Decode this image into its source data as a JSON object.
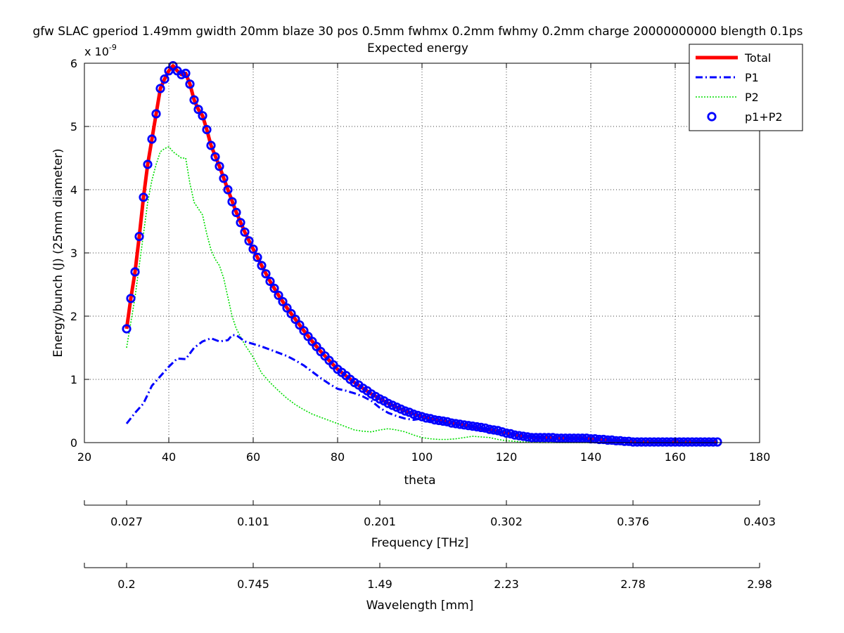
{
  "chart_data": {
    "type": "line",
    "title_line1": "gfw SLAC gperiod 1.49mm gwidth 20mm blaze 30 pos 0.5mm fwhmx 0.2mm fwhmy 0.2mm charge 20000000000 blength 0.1ps",
    "title_line2": "Expected energy",
    "xlabel": "theta",
    "ylabel": "Energy/bunch (J) (25mm diameter)",
    "y_exponent_base": "x 10",
    "y_exponent_power": "-9",
    "xlim": [
      20,
      180
    ],
    "ylim": [
      0,
      6
    ],
    "x_ticks": [
      20,
      40,
      60,
      80,
      100,
      120,
      140,
      160,
      180
    ],
    "y_ticks": [
      0,
      1,
      2,
      3,
      4,
      5,
      6
    ],
    "grid": true,
    "legend_position": "top-right",
    "series": [
      {
        "name": "Total",
        "style": "solid-thick",
        "color": "#ff0000",
        "x": [
          30,
          31,
          32,
          33,
          34,
          35,
          36,
          37,
          38,
          39,
          40,
          41,
          42,
          43,
          44,
          45,
          46,
          47,
          48,
          49,
          50,
          52,
          54,
          56,
          58,
          60,
          62,
          64,
          66,
          68,
          70,
          72,
          74,
          76,
          78,
          80,
          84,
          88,
          92,
          96,
          100,
          104,
          108,
          112,
          116,
          120,
          124,
          128,
          132,
          136,
          140,
          144,
          148,
          152,
          156,
          160,
          164,
          168,
          170
        ],
        "y": [
          1.8,
          2.28,
          2.7,
          3.26,
          3.88,
          4.4,
          4.8,
          5.2,
          5.6,
          5.75,
          5.88,
          5.96,
          5.88,
          5.82,
          5.84,
          5.67,
          5.42,
          5.27,
          5.17,
          4.95,
          4.7,
          4.37,
          4.0,
          3.64,
          3.33,
          3.06,
          2.8,
          2.55,
          2.33,
          2.13,
          1.95,
          1.77,
          1.6,
          1.44,
          1.3,
          1.16,
          0.95,
          0.77,
          0.62,
          0.5,
          0.41,
          0.35,
          0.3,
          0.25,
          0.2,
          0.15,
          0.1,
          0.08,
          0.07,
          0.07,
          0.06,
          0.04,
          0.02,
          0.01,
          0.01,
          0.01,
          0.01,
          0.01,
          0.01
        ]
      },
      {
        "name": "P1",
        "style": "dashdot",
        "color": "#0000ff",
        "x": [
          30,
          32,
          34,
          36,
          38,
          40,
          42,
          44,
          46,
          48,
          50,
          52,
          54,
          55,
          56,
          58,
          60,
          62,
          64,
          66,
          68,
          70,
          72,
          74,
          76,
          78,
          80,
          82,
          84,
          86,
          88,
          90,
          92,
          94,
          96,
          98,
          100,
          102,
          104,
          108,
          112,
          116,
          120,
          124,
          128,
          132,
          136,
          140,
          144,
          148,
          152,
          156,
          160,
          164,
          168,
          170
        ],
        "y": [
          0.3,
          0.47,
          0.62,
          0.9,
          1.05,
          1.2,
          1.33,
          1.32,
          1.5,
          1.6,
          1.65,
          1.6,
          1.62,
          1.7,
          1.7,
          1.6,
          1.56,
          1.52,
          1.47,
          1.42,
          1.37,
          1.3,
          1.22,
          1.12,
          1.02,
          0.93,
          0.85,
          0.82,
          0.78,
          0.73,
          0.66,
          0.55,
          0.47,
          0.42,
          0.38,
          0.36,
          0.38,
          0.35,
          0.33,
          0.29,
          0.26,
          0.21,
          0.15,
          0.1,
          0.08,
          0.07,
          0.07,
          0.06,
          0.04,
          0.02,
          0.01,
          0.01,
          0.01,
          0.01,
          0.01,
          0.01
        ]
      },
      {
        "name": "P2",
        "style": "dotted",
        "color": "#00dd00",
        "x": [
          30,
          31,
          32,
          33,
          34,
          35,
          36,
          37,
          38,
          39,
          40,
          41,
          42,
          43,
          44,
          45,
          46,
          47,
          48,
          49,
          50,
          51,
          52,
          53,
          54,
          55,
          56,
          58,
          60,
          62,
          64,
          66,
          68,
          70,
          72,
          74,
          76,
          78,
          80,
          82,
          84,
          86,
          88,
          90,
          92,
          94,
          96,
          98,
          100,
          102,
          104,
          106,
          108,
          110,
          112,
          114,
          116,
          118,
          120,
          122,
          124,
          126,
          128,
          130,
          140,
          150,
          160,
          170
        ],
        "y": [
          1.5,
          1.9,
          2.3,
          2.8,
          3.3,
          3.8,
          4.15,
          4.4,
          4.6,
          4.65,
          4.68,
          4.6,
          4.55,
          4.5,
          4.5,
          4.1,
          3.8,
          3.7,
          3.6,
          3.3,
          3.05,
          2.9,
          2.8,
          2.6,
          2.3,
          2.0,
          1.8,
          1.55,
          1.35,
          1.1,
          0.95,
          0.82,
          0.7,
          0.6,
          0.52,
          0.45,
          0.4,
          0.35,
          0.3,
          0.25,
          0.2,
          0.18,
          0.17,
          0.2,
          0.22,
          0.2,
          0.17,
          0.12,
          0.08,
          0.06,
          0.05,
          0.05,
          0.06,
          0.08,
          0.1,
          0.09,
          0.08,
          0.05,
          0.03,
          0.02,
          0.01,
          0.01,
          0.0,
          0.0,
          0.0,
          0.0,
          0.0,
          0.0
        ]
      },
      {
        "name": "p1+P2",
        "style": "circles",
        "color": "#0000ff",
        "x": [
          30,
          31,
          32,
          33,
          34,
          35,
          36,
          37,
          38,
          39,
          40,
          41,
          42,
          43,
          44,
          45,
          46,
          47,
          48,
          49,
          50,
          51,
          52,
          53,
          54,
          55,
          56,
          57,
          58,
          59,
          60,
          61,
          62,
          63,
          64,
          65,
          66,
          67,
          68,
          69,
          70,
          71,
          72,
          73,
          74,
          75,
          76,
          77,
          78,
          79,
          80,
          81,
          82,
          83,
          84,
          85,
          86,
          87,
          88,
          89,
          90,
          91,
          92,
          93,
          94,
          95,
          96,
          97,
          98,
          99,
          100,
          101,
          102,
          103,
          104,
          105,
          106,
          107,
          108,
          109,
          110,
          111,
          112,
          113,
          114,
          115,
          116,
          117,
          118,
          119,
          120,
          121,
          122,
          123,
          124,
          125,
          126,
          127,
          128,
          129,
          130,
          131,
          132,
          133,
          134,
          135,
          136,
          137,
          138,
          139,
          140,
          141,
          142,
          143,
          144,
          145,
          146,
          147,
          148,
          149,
          150,
          151,
          152,
          153,
          154,
          155,
          156,
          157,
          158,
          159,
          160,
          161,
          162,
          163,
          164,
          165,
          166,
          167,
          168,
          169,
          170
        ],
        "y": [
          1.8,
          2.28,
          2.7,
          3.26,
          3.88,
          4.4,
          4.8,
          5.2,
          5.6,
          5.75,
          5.88,
          5.96,
          5.88,
          5.82,
          5.84,
          5.67,
          5.42,
          5.27,
          5.17,
          4.95,
          4.7,
          4.52,
          4.37,
          4.18,
          4.0,
          3.81,
          3.64,
          3.48,
          3.33,
          3.19,
          3.06,
          2.93,
          2.8,
          2.67,
          2.55,
          2.44,
          2.33,
          2.23,
          2.13,
          2.04,
          1.95,
          1.86,
          1.77,
          1.68,
          1.6,
          1.52,
          1.44,
          1.37,
          1.3,
          1.23,
          1.16,
          1.11,
          1.06,
          1.0,
          0.95,
          0.91,
          0.86,
          0.82,
          0.77,
          0.73,
          0.69,
          0.66,
          0.62,
          0.59,
          0.56,
          0.53,
          0.5,
          0.48,
          0.45,
          0.43,
          0.41,
          0.39,
          0.38,
          0.36,
          0.35,
          0.34,
          0.33,
          0.31,
          0.3,
          0.29,
          0.28,
          0.27,
          0.26,
          0.25,
          0.24,
          0.23,
          0.21,
          0.2,
          0.19,
          0.17,
          0.15,
          0.14,
          0.12,
          0.11,
          0.1,
          0.09,
          0.08,
          0.08,
          0.08,
          0.08,
          0.08,
          0.08,
          0.07,
          0.07,
          0.07,
          0.07,
          0.07,
          0.07,
          0.07,
          0.07,
          0.06,
          0.06,
          0.05,
          0.05,
          0.04,
          0.04,
          0.03,
          0.03,
          0.02,
          0.02,
          0.01,
          0.01,
          0.01,
          0.01,
          0.01,
          0.01,
          0.01,
          0.01,
          0.01,
          0.01,
          0.01,
          0.01,
          0.01,
          0.01,
          0.01,
          0.01,
          0.01,
          0.01,
          0.01,
          0.01,
          0.01
        ]
      }
    ],
    "secondary_axes": [
      {
        "name": "frequency",
        "label": "Frequency [THz]",
        "tick_labels": [
          "0.027",
          "0.101",
          "0.201",
          "0.302",
          "0.376",
          "0.403"
        ],
        "tick_theta": [
          30,
          60,
          90,
          120,
          150,
          180
        ]
      },
      {
        "name": "wavelength",
        "label": "Wavelength [mm]",
        "tick_labels": [
          "0.2",
          "0.745",
          "1.49",
          "2.23",
          "2.78",
          "2.98"
        ],
        "tick_theta": [
          30,
          60,
          90,
          120,
          150,
          180
        ]
      }
    ]
  }
}
